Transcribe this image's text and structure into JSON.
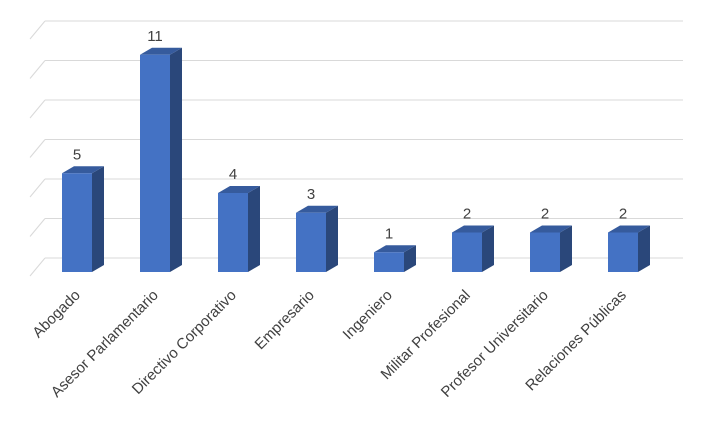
{
  "chart_data": {
    "type": "bar3d",
    "categories": [
      "Abogado",
      "Asesor Parlamentario",
      "Directivo Corporativo",
      "Empresario",
      "Ingeniero",
      "Militar Profesional",
      "Profesor Universitario",
      "Relaciones Públicas"
    ],
    "values": [
      5,
      11,
      4,
      3,
      1,
      2,
      2,
      2
    ],
    "color": "#4472c4",
    "ylim": [
      0,
      12
    ],
    "yticks": [
      0,
      2,
      4,
      6,
      8,
      10,
      12
    ],
    "grid": true
  }
}
